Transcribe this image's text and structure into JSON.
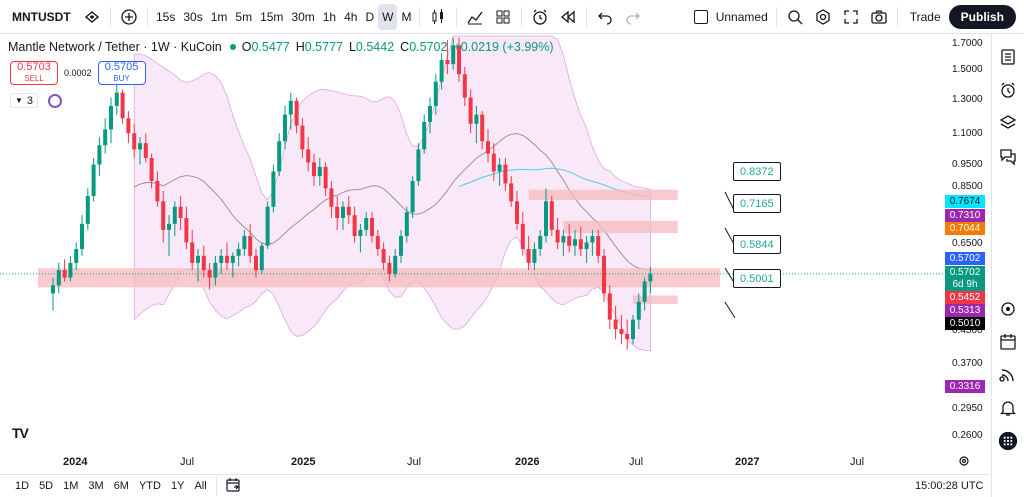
{
  "topbar": {
    "symbol": "MNTUSDT",
    "timeframes": [
      "15s",
      "30s",
      "1m",
      "5m",
      "15m",
      "30m",
      "1h",
      "4h",
      "D",
      "W",
      "M"
    ],
    "active_timeframe": "W",
    "layout_name": "Unnamed",
    "trade_label": "Trade",
    "publish_label": "Publish",
    "icons": [
      "flag-icon",
      "plus-circle-icon",
      "candlestick-icon",
      "indicators-icon",
      "templates-icon",
      "alert-icon",
      "replay-icon",
      "undo-icon",
      "redo-icon",
      "zoom-icon",
      "settings-icon",
      "fullscreen-icon",
      "camera-icon"
    ]
  },
  "legend": {
    "title": "Mantle Network / Tether · 1W · KuCoin",
    "open_label": "O",
    "open": "0.5477",
    "high_label": "H",
    "high": "0.5777",
    "low_label": "L",
    "low": "0.5442",
    "close_label": "C",
    "close": "0.5702",
    "change": "+0.0219 (+3.99%)"
  },
  "trade_panel": {
    "sell_price": "0.5703",
    "sell_label": "SELL",
    "spread": "0.0002",
    "buy_price": "0.5705",
    "buy_label": "BUY"
  },
  "indicators": {
    "count": "3"
  },
  "price_scale": {
    "ticks": [
      "1.7000",
      "1.5000",
      "1.3000",
      "1.1000",
      "0.9500",
      "0.8500",
      "0.6500",
      "0.4500",
      "0.3700",
      "0.2950",
      "0.2600"
    ],
    "badges": [
      {
        "value": "0.7674",
        "color": "#00e5ff"
      },
      {
        "value": "0.7310",
        "color": "#9c27b0"
      },
      {
        "value": "0.7044",
        "color": "#f57c00"
      },
      {
        "value": "0.5702",
        "color": "#2962ff"
      },
      {
        "value": "0.5702",
        "color": "#089981"
      },
      {
        "value": "6d 9h",
        "color": "#089981"
      },
      {
        "value": "0.5452",
        "color": "#f23645"
      },
      {
        "value": "0.5313",
        "color": "#9c27b0"
      },
      {
        "value": "0.5010",
        "color": "#000000"
      },
      {
        "value": "0.3316",
        "color": "#9c27b0"
      }
    ]
  },
  "callouts": [
    "0.8372",
    "0.7165",
    "0.5844",
    "0.5001"
  ],
  "time_axis": [
    "2024",
    "Jul",
    "2025",
    "Jul",
    "2026",
    "Jul",
    "2027",
    "Jul"
  ],
  "bottombar": {
    "ranges": [
      "1D",
      "5D",
      "1M",
      "3M",
      "6M",
      "YTD",
      "1Y",
      "All"
    ],
    "clock": "15:00:28 UTC"
  },
  "branding": {
    "logo": "TV"
  },
  "colors": {
    "up": "#089981",
    "down": "#f23645",
    "zone": "#f7b9bd",
    "band": "#f3d6f3"
  },
  "chart_data": {
    "type": "candlestick",
    "scale": "log",
    "ylim": [
      0.25,
      1.75
    ],
    "candles": [
      [
        0.52,
        0.56,
        0.48,
        0.54
      ],
      [
        0.54,
        0.6,
        0.52,
        0.58
      ],
      [
        0.58,
        0.61,
        0.55,
        0.56
      ],
      [
        0.56,
        0.62,
        0.55,
        0.6
      ],
      [
        0.6,
        0.66,
        0.58,
        0.64
      ],
      [
        0.64,
        0.75,
        0.62,
        0.72
      ],
      [
        0.72,
        0.85,
        0.7,
        0.82
      ],
      [
        0.82,
        0.98,
        0.8,
        0.95
      ],
      [
        0.95,
        1.08,
        0.9,
        1.04
      ],
      [
        1.04,
        1.18,
        1.0,
        1.12
      ],
      [
        1.12,
        1.3,
        1.05,
        1.25
      ],
      [
        1.25,
        1.4,
        1.2,
        1.33
      ],
      [
        1.33,
        1.35,
        1.15,
        1.18
      ],
      [
        1.18,
        1.22,
        1.05,
        1.1
      ],
      [
        1.1,
        1.15,
        0.98,
        1.02
      ],
      [
        1.02,
        1.08,
        0.95,
        1.05
      ],
      [
        1.05,
        1.1,
        0.96,
        0.98
      ],
      [
        0.98,
        1.0,
        0.85,
        0.88
      ],
      [
        0.88,
        0.92,
        0.78,
        0.8
      ],
      [
        0.8,
        0.84,
        0.66,
        0.7
      ],
      [
        0.7,
        0.75,
        0.62,
        0.72
      ],
      [
        0.72,
        0.8,
        0.68,
        0.78
      ],
      [
        0.78,
        0.82,
        0.7,
        0.74
      ],
      [
        0.74,
        0.78,
        0.64,
        0.66
      ],
      [
        0.66,
        0.7,
        0.58,
        0.6
      ],
      [
        0.6,
        0.64,
        0.55,
        0.62
      ],
      [
        0.62,
        0.65,
        0.56,
        0.58
      ],
      [
        0.58,
        0.6,
        0.53,
        0.56
      ],
      [
        0.56,
        0.62,
        0.54,
        0.6
      ],
      [
        0.6,
        0.64,
        0.57,
        0.62
      ],
      [
        0.62,
        0.66,
        0.58,
        0.6
      ],
      [
        0.6,
        0.63,
        0.56,
        0.62
      ],
      [
        0.62,
        0.66,
        0.59,
        0.64
      ],
      [
        0.64,
        0.7,
        0.62,
        0.68
      ],
      [
        0.68,
        0.72,
        0.6,
        0.62
      ],
      [
        0.62,
        0.64,
        0.56,
        0.58
      ],
      [
        0.58,
        0.66,
        0.57,
        0.65
      ],
      [
        0.65,
        0.8,
        0.64,
        0.78
      ],
      [
        0.78,
        0.95,
        0.76,
        0.92
      ],
      [
        0.92,
        1.1,
        0.9,
        1.06
      ],
      [
        1.06,
        1.25,
        1.02,
        1.2
      ],
      [
        1.2,
        1.33,
        1.12,
        1.28
      ],
      [
        1.28,
        1.3,
        1.1,
        1.14
      ],
      [
        1.14,
        1.18,
        0.98,
        1.02
      ],
      [
        1.02,
        1.08,
        0.92,
        0.96
      ],
      [
        0.96,
        1.0,
        0.86,
        0.9
      ],
      [
        0.9,
        0.98,
        0.86,
        0.94
      ],
      [
        0.94,
        0.96,
        0.82,
        0.85
      ],
      [
        0.85,
        0.88,
        0.74,
        0.78
      ],
      [
        0.78,
        0.82,
        0.7,
        0.74
      ],
      [
        0.74,
        0.8,
        0.7,
        0.78
      ],
      [
        0.78,
        0.82,
        0.72,
        0.75
      ],
      [
        0.75,
        0.78,
        0.66,
        0.68
      ],
      [
        0.68,
        0.72,
        0.63,
        0.7
      ],
      [
        0.7,
        0.76,
        0.68,
        0.74
      ],
      [
        0.74,
        0.76,
        0.66,
        0.68
      ],
      [
        0.68,
        0.7,
        0.62,
        0.64
      ],
      [
        0.64,
        0.66,
        0.58,
        0.6
      ],
      [
        0.6,
        0.62,
        0.55,
        0.57
      ],
      [
        0.57,
        0.64,
        0.56,
        0.62
      ],
      [
        0.62,
        0.7,
        0.6,
        0.68
      ],
      [
        0.68,
        0.78,
        0.66,
        0.76
      ],
      [
        0.76,
        0.9,
        0.74,
        0.88
      ],
      [
        0.88,
        1.05,
        0.86,
        1.02
      ],
      [
        1.02,
        1.2,
        1.0,
        1.16
      ],
      [
        1.16,
        1.3,
        1.1,
        1.25
      ],
      [
        1.25,
        1.45,
        1.2,
        1.4
      ],
      [
        1.4,
        1.6,
        1.35,
        1.55
      ],
      [
        1.55,
        1.7,
        1.45,
        1.52
      ],
      [
        1.52,
        1.72,
        1.48,
        1.66
      ],
      [
        1.66,
        1.72,
        1.4,
        1.45
      ],
      [
        1.45,
        1.5,
        1.25,
        1.3
      ],
      [
        1.3,
        1.35,
        1.1,
        1.15
      ],
      [
        1.15,
        1.25,
        1.05,
        1.2
      ],
      [
        1.2,
        1.22,
        1.02,
        1.06
      ],
      [
        1.06,
        1.12,
        0.96,
        1.0
      ],
      [
        1.0,
        1.05,
        0.88,
        0.92
      ],
      [
        0.92,
        0.98,
        0.86,
        0.95
      ],
      [
        0.95,
        0.98,
        0.84,
        0.87
      ],
      [
        0.87,
        0.9,
        0.78,
        0.8
      ],
      [
        0.8,
        0.84,
        0.7,
        0.72
      ],
      [
        0.72,
        0.76,
        0.62,
        0.64
      ],
      [
        0.64,
        0.68,
        0.58,
        0.6
      ],
      [
        0.6,
        0.66,
        0.58,
        0.64
      ],
      [
        0.64,
        0.7,
        0.62,
        0.68
      ],
      [
        0.68,
        0.85,
        0.66,
        0.8
      ],
      [
        0.8,
        0.82,
        0.68,
        0.7
      ],
      [
        0.7,
        0.74,
        0.64,
        0.66
      ],
      [
        0.66,
        0.7,
        0.62,
        0.68
      ],
      [
        0.68,
        0.72,
        0.63,
        0.65
      ],
      [
        0.65,
        0.7,
        0.62,
        0.67
      ],
      [
        0.67,
        0.71,
        0.62,
        0.64
      ],
      [
        0.64,
        0.68,
        0.6,
        0.66
      ],
      [
        0.66,
        0.7,
        0.62,
        0.68
      ],
      [
        0.68,
        0.7,
        0.6,
        0.62
      ],
      [
        0.62,
        0.64,
        0.5,
        0.52
      ],
      [
        0.52,
        0.54,
        0.44,
        0.46
      ],
      [
        0.46,
        0.49,
        0.42,
        0.44
      ],
      [
        0.44,
        0.47,
        0.41,
        0.43
      ],
      [
        0.43,
        0.46,
        0.4,
        0.42
      ],
      [
        0.42,
        0.47,
        0.41,
        0.46
      ],
      [
        0.46,
        0.52,
        0.44,
        0.5
      ],
      [
        0.5,
        0.56,
        0.48,
        0.55
      ],
      [
        0.55,
        0.59,
        0.52,
        0.57
      ]
    ],
    "zones": [
      {
        "from_bar": 0,
        "to_bar": 106,
        "low": 0.535,
        "high": 0.585
      },
      {
        "from_bar": 82,
        "to_bar": 106,
        "low": 0.805,
        "high": 0.845
      },
      {
        "from_bar": 88,
        "to_bar": 106,
        "low": 0.69,
        "high": 0.73
      },
      {
        "from_bar": 100,
        "to_bar": 106,
        "low": 0.495,
        "high": 0.515
      }
    ]
  }
}
